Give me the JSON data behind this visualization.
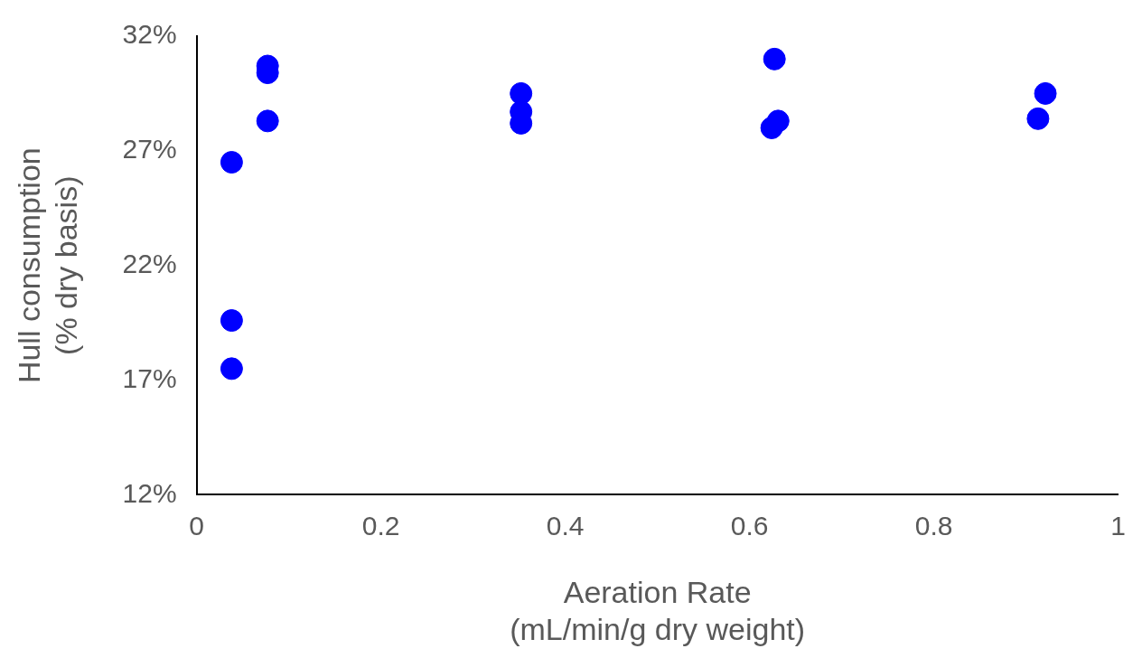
{
  "chart_data": {
    "type": "scatter",
    "xlabel": "Aeration Rate\n(mL/min/g dry weight)",
    "ylabel": "Hull consumption\n(% dry basis)",
    "series": [
      {
        "color": "#0000ff",
        "x": [
          0.038,
          0.038,
          0.038,
          0.077,
          0.077,
          0.077,
          0.352,
          0.352,
          0.352,
          0.627,
          0.631,
          0.624,
          0.921,
          0.913
        ],
        "values": [
          26.5,
          19.6,
          17.5,
          30.7,
          30.4,
          28.3,
          29.5,
          28.7,
          28.2,
          31.0,
          28.3,
          28.0,
          29.5,
          28.4
        ]
      }
    ],
    "xlim": [
      0,
      1
    ],
    "xticks": [
      0,
      0.2,
      0.4,
      0.6,
      0.8,
      1
    ],
    "ylim": [
      12,
      32
    ],
    "yticks": [
      {
        "value": 12,
        "label": "12%"
      },
      {
        "value": 17,
        "label": "17%"
      },
      {
        "value": 22,
        "label": "22%"
      },
      {
        "value": 27,
        "label": "27%"
      },
      {
        "value": 32,
        "label": "32%"
      }
    ],
    "grid": false,
    "legend": false,
    "marker": "circle"
  }
}
